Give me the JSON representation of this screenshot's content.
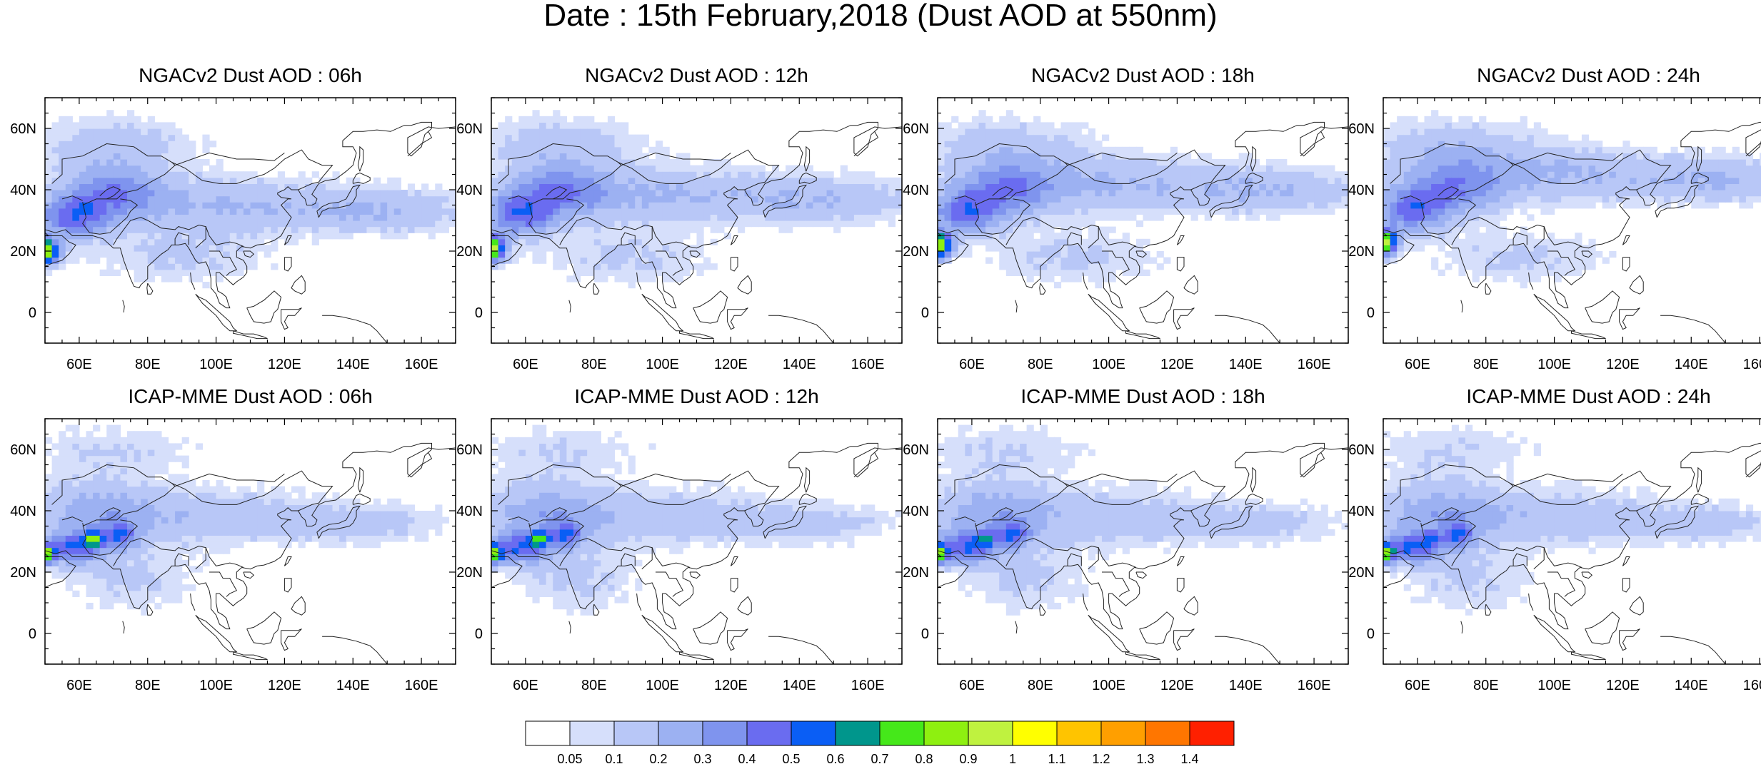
{
  "title": "Date : 15th February,2018 (Dust AOD at 550nm)",
  "panels": [
    {
      "title": "NGACv2 Dust AOD : 06h",
      "model": "ngac",
      "hour": 6
    },
    {
      "title": "NGACv2 Dust AOD : 12h",
      "model": "ngac",
      "hour": 12
    },
    {
      "title": "NGACv2 Dust AOD : 18h",
      "model": "ngac",
      "hour": 18
    },
    {
      "title": "NGACv2 Dust AOD : 24h",
      "model": "ngac",
      "hour": 24
    },
    {
      "title": "ICAP-MME Dust AOD : 06h",
      "model": "icap",
      "hour": 6
    },
    {
      "title": "ICAP-MME Dust AOD : 12h",
      "model": "icap",
      "hour": 12
    },
    {
      "title": "ICAP-MME Dust AOD : 18h",
      "model": "icap",
      "hour": 18
    },
    {
      "title": "ICAP-MME Dust AOD : 24h",
      "model": "icap",
      "hour": 24
    }
  ],
  "axes": {
    "lon_range": [
      50,
      170
    ],
    "lat_range": [
      -10,
      70
    ],
    "lon_ticks": [
      {
        "v": 60,
        "label": "60E"
      },
      {
        "v": 80,
        "label": "80E"
      },
      {
        "v": 100,
        "label": "100E"
      },
      {
        "v": 120,
        "label": "120E"
      },
      {
        "v": 140,
        "label": "140E"
      },
      {
        "v": 160,
        "label": "160E"
      }
    ],
    "lat_ticks": [
      {
        "v": 0,
        "label": "0"
      },
      {
        "v": 20,
        "label": "20N"
      },
      {
        "v": 40,
        "label": "40N"
      },
      {
        "v": 60,
        "label": "60N"
      }
    ]
  },
  "colorbar": {
    "labels": [
      "0.05",
      "0.1",
      "0.2",
      "0.3",
      "0.4",
      "0.5",
      "0.6",
      "0.7",
      "0.8",
      "0.9",
      "1",
      "1.1",
      "1.2",
      "1.3",
      "1.4"
    ],
    "colors": [
      "#ffffff",
      "#d6dffb",
      "#b8c7f7",
      "#9cb1f2",
      "#7f94ee",
      "#6a6cf0",
      "#0a5ef5",
      "#00968c",
      "#45e81a",
      "#8ef010",
      "#bff23f",
      "#ffff00",
      "#ffc400",
      "#ff9f00",
      "#ff7600",
      "#ff2000"
    ]
  }
}
